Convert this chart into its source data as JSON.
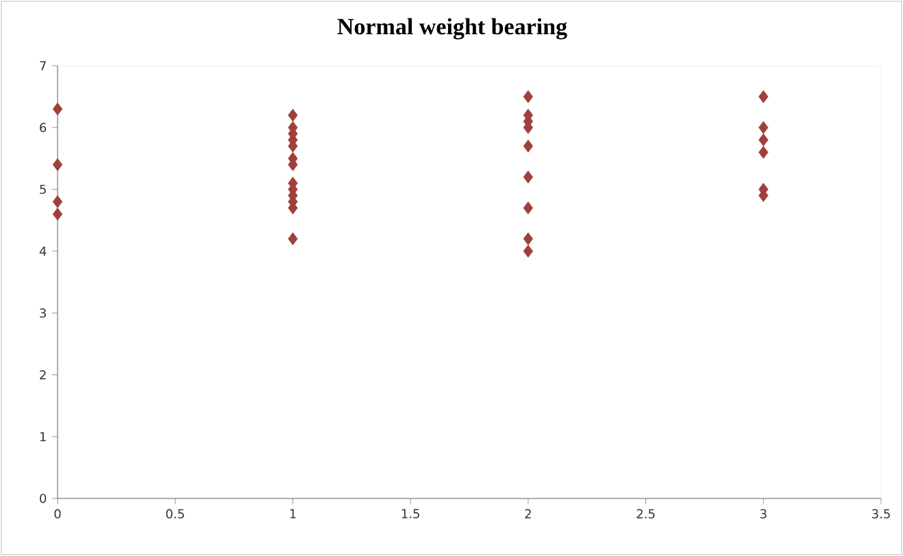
{
  "chart_data": {
    "type": "scatter",
    "title": "Normal weight bearing",
    "x": [
      0,
      0,
      0,
      0,
      1,
      1,
      1,
      1,
      1,
      1,
      1,
      1,
      1,
      1,
      1,
      1,
      1,
      2,
      2,
      2,
      2,
      2,
      2,
      2,
      2,
      2,
      3,
      3,
      3,
      3,
      3,
      3
    ],
    "values": [
      6.3,
      5.4,
      4.8,
      4.6,
      6.2,
      6.0,
      5.9,
      5.8,
      5.7,
      5.5,
      5.4,
      5.1,
      5.0,
      4.9,
      4.8,
      4.7,
      4.2,
      6.5,
      6.2,
      6.1,
      6.0,
      5.7,
      5.2,
      4.7,
      4.2,
      4.0,
      6.5,
      6.0,
      5.8,
      5.6,
      5.0,
      4.9
    ],
    "color": "#a0403c",
    "marker": "diamond",
    "grid": false,
    "xlim": [
      0,
      3.5
    ],
    "xticks": [
      0,
      0.5,
      1,
      1.5,
      2,
      2.5,
      3,
      3.5
    ],
    "ylim": [
      0,
      7
    ],
    "yticks": [
      0,
      1,
      2,
      3,
      4,
      5,
      6,
      7
    ]
  }
}
